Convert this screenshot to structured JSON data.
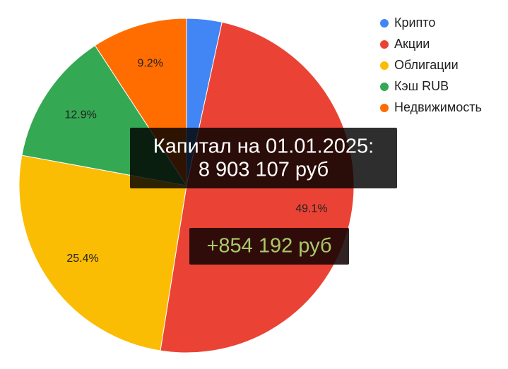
{
  "chart_data": {
    "type": "pie",
    "categories": [
      "Крипто",
      "Акции",
      "Облигации",
      "Кэш RUB",
      "Недвижимость"
    ],
    "values": [
      3.4,
      49.1,
      25.4,
      12.9,
      9.2
    ],
    "value_labels": [
      null,
      "49.1%",
      "25.4%",
      "12.9%",
      "9.2%"
    ],
    "colors": [
      "#4285f4",
      "#ea4335",
      "#fbbc04",
      "#34a853",
      "#ff6d01"
    ],
    "legend": "top-right",
    "annotations": [
      "Капитал на 01.01.2025:",
      "8 903 107 руб",
      "+854 192 руб"
    ]
  }
}
